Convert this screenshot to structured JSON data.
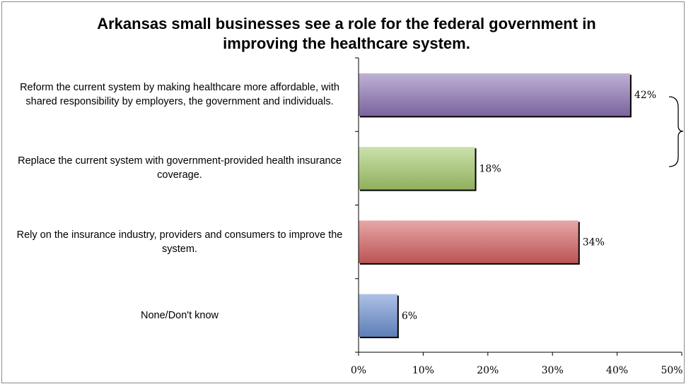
{
  "chart_data": {
    "type": "bar",
    "orientation": "horizontal",
    "title": "Arkansas small businesses see a role for the federal government in improving the healthcare system.",
    "categories": [
      "Reform the current system by making healthcare more affordable, with shared responsibility by employers, the government and individuals.",
      "Replace the current system with government-provided health insurance coverage.",
      "Rely on the insurance industry, providers and consumers to improve the system.",
      "None/Don't know"
    ],
    "values": [
      42,
      18,
      34,
      6
    ],
    "data_labels": [
      "42%",
      "18%",
      "34%",
      "6%"
    ],
    "colors": [
      "#8b72b3",
      "#a3c86a",
      "#d45f5f",
      "#6a8fd0"
    ],
    "xlim": [
      0,
      50
    ],
    "xticks": [
      "0%",
      "10%",
      "20%",
      "30%",
      "40%",
      "50%"
    ],
    "grid": false,
    "legend": "none"
  }
}
